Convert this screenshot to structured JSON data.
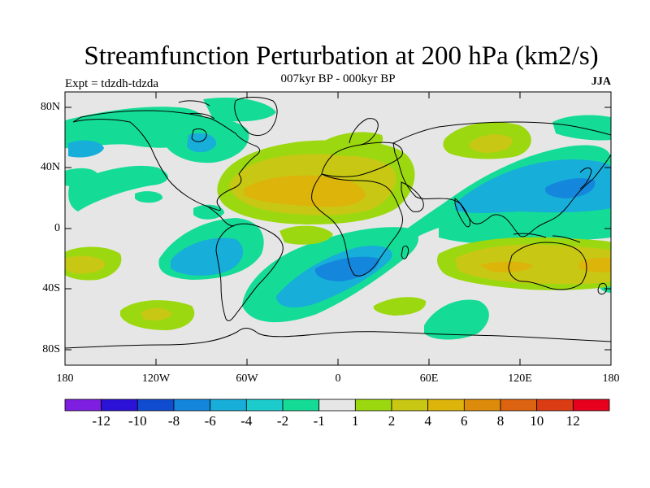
{
  "title": "Streamfunction Perturbation at 200 hPa (km2/s)",
  "subtitle": "007kyr BP - 000kyr BP",
  "experiment": "Expt = tdzdh-tdzda",
  "season": "JJA",
  "y_ticks": [
    "80N",
    "40N",
    "0",
    "40S",
    "80S"
  ],
  "x_ticks": [
    "180",
    "120W",
    "60W",
    "0",
    "60E",
    "120E",
    "180"
  ],
  "colorbar": {
    "colors": [
      "#7e1ee0",
      "#2b12d6",
      "#0f4ccf",
      "#1487dd",
      "#17aed9",
      "#1ccccc",
      "#14dc96",
      "#e6e6e6",
      "#9cd80f",
      "#c8c814",
      "#dcb40a",
      "#dc8c0a",
      "#dc6410",
      "#dc3c14",
      "#e6001e"
    ],
    "labels": [
      "-12",
      "-10",
      "-8",
      "-6",
      "-4",
      "-2",
      "-1",
      "1",
      "2",
      "4",
      "6",
      "8",
      "10",
      "12"
    ]
  },
  "map": {
    "lon_range": [
      -180,
      180
    ],
    "lat_range": [
      -90,
      90
    ],
    "background": "#e6e6e6"
  }
}
